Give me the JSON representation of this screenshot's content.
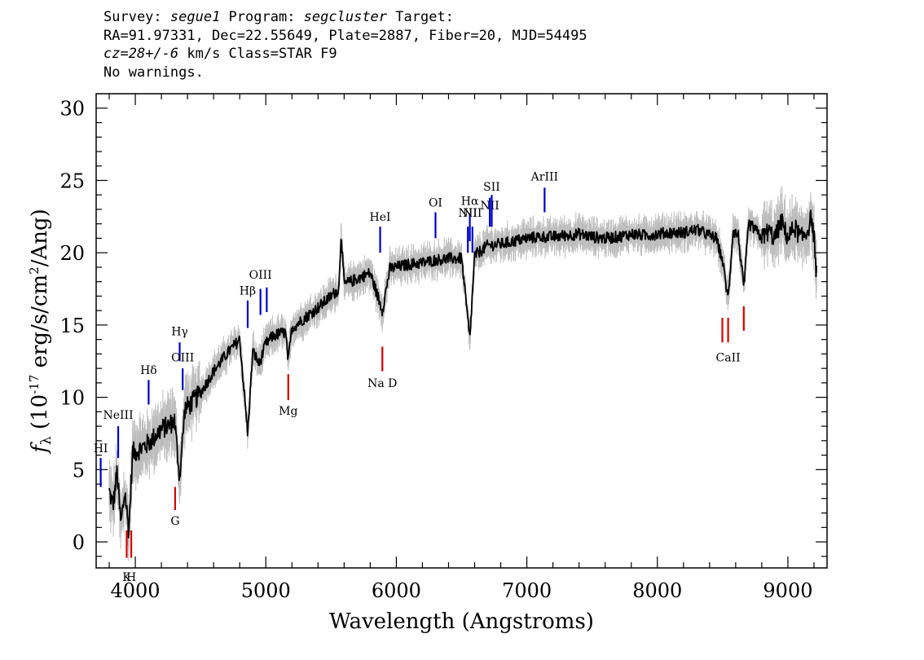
{
  "header": {
    "l1_a": "Survey: ",
    "l1_survey": "segue1",
    "l1_b": " Program: ",
    "l1_program": "segcluster",
    "l1_c": " Target:",
    "line2": "RA=91.97331, Dec=22.55649, Plate=2887, Fiber=20, MJD=54495",
    "l3_z": "cz=28+/-6",
    "l3_rest": " km/s Class=STAR F9",
    "line4": "No warnings."
  },
  "chart_data": {
    "type": "line",
    "title": "",
    "xlabel": "Wavelength (Angstroms)",
    "ylabel_main": "f",
    "ylabel_sub": "λ",
    "ylabel_rest_pre": " (10",
    "ylabel_exp": "-17",
    "ylabel_rest_mid": " erg/s/cm",
    "ylabel_exp2": "2",
    "ylabel_rest_end": "/Ang)",
    "xlim": [
      3700,
      9300
    ],
    "ylim": [
      -1.8,
      31
    ],
    "xticks": [
      4000,
      5000,
      6000,
      7000,
      8000,
      9000
    ],
    "yticks": [
      0,
      5,
      10,
      15,
      20,
      25,
      30
    ],
    "xminor_step": 200,
    "yminor_step": 1,
    "series": [
      {
        "color": "#000000",
        "x": [
          3800,
          3830,
          3860,
          3890,
          3920,
          3950,
          3980,
          4000,
          4050,
          4100,
          4150,
          4200,
          4250,
          4300,
          4340,
          4380,
          4420,
          4500,
          4600,
          4700,
          4800,
          4861,
          4900,
          4950,
          5000,
          5050,
          5100,
          5150,
          5172,
          5200,
          5300,
          5400,
          5500,
          5560,
          5577,
          5600,
          5700,
          5800,
          5893,
          5950,
          6000,
          6100,
          6200,
          6300,
          6400,
          6500,
          6563,
          6600,
          6700,
          6800,
          6900,
          7000,
          7100,
          7200,
          7300,
          7400,
          7500,
          7600,
          7700,
          7800,
          7900,
          8000,
          8100,
          8200,
          8300,
          8400,
          8450,
          8498,
          8542,
          8580,
          8620,
          8662,
          8700,
          8750,
          8800,
          8850,
          8900,
          8950,
          9000,
          9050,
          9100,
          9150,
          9180,
          9200,
          9220
        ],
        "values": [
          3.5,
          2.5,
          4.8,
          1.2,
          3.5,
          0.8,
          6.2,
          6.2,
          6.5,
          6.8,
          7.3,
          7.8,
          8.0,
          8.4,
          4.5,
          9.2,
          9.5,
          10.3,
          11.8,
          13.0,
          14.0,
          7.5,
          13.2,
          12.3,
          13.7,
          14.2,
          14.4,
          14.5,
          12.5,
          14.8,
          15.5,
          16.2,
          17.0,
          17.5,
          21.5,
          17.8,
          18.2,
          18.6,
          16.0,
          18.9,
          19.0,
          19.2,
          19.3,
          19.5,
          19.6,
          19.6,
          14.0,
          19.8,
          20.5,
          20.6,
          20.8,
          21.0,
          21.1,
          21.1,
          21.2,
          21.3,
          21.1,
          21.0,
          21.1,
          21.3,
          21.2,
          21.3,
          21.4,
          21.4,
          21.6,
          21.2,
          21.0,
          19.5,
          16.8,
          21.5,
          21.2,
          17.5,
          22.0,
          21.6,
          21.0,
          21.5,
          21.0,
          22.2,
          21.0,
          21.8,
          21.0,
          21.5,
          22.5,
          21.0,
          18.5
        ]
      }
    ],
    "error_band_color": "#bdbdbd",
    "line_ids": [
      {
        "label": "HI",
        "x": 3735,
        "color": "#0000c8",
        "ylo": 3.8,
        "yhi": 5.8,
        "ly": 6.2
      },
      {
        "label": "NeIII",
        "x": 3869,
        "color": "#0000c8",
        "ylo": 5.8,
        "yhi": 8.0,
        "ly": 8.5
      },
      {
        "label": "Hδ",
        "x": 4102,
        "color": "#0000c8",
        "ylo": 9.5,
        "yhi": 11.2,
        "ly": 11.6
      },
      {
        "label": "Hγ",
        "x": 4340,
        "color": "#0000c8",
        "ylo": 12.5,
        "yhi": 13.8,
        "ly": 14.3
      },
      {
        "label": "OIII",
        "x": 4363,
        "color": "#0000c8",
        "ylo": 10.5,
        "yhi": 12.0,
        "ly": 12.5
      },
      {
        "label": "Hβ",
        "x": 4861,
        "color": "#0000c8",
        "ylo": 14.8,
        "yhi": 16.7,
        "ly": 17.1
      },
      {
        "label": "OIII",
        "x": 4959,
        "color": "#0000c8",
        "ylo": 15.7,
        "yhi": 17.5,
        "ly": 18.2
      },
      {
        "label": "",
        "x": 5007,
        "color": "#0000c8",
        "ylo": 15.9,
        "yhi": 17.6,
        "ly": 18.2
      },
      {
        "label": "HeI",
        "x": 5876,
        "color": "#0000c8",
        "ylo": 20.0,
        "yhi": 21.8,
        "ly": 22.2
      },
      {
        "label": "OI",
        "x": 6300,
        "color": "#0000c8",
        "ylo": 21.0,
        "yhi": 22.8,
        "ly": 23.2
      },
      {
        "label": "NII",
        "x": 6548,
        "color": "#0000c8",
        "ylo": 20.0,
        "yhi": 21.8,
        "ly": 22.5
      },
      {
        "label": "Hα",
        "x": 6563,
        "color": "#0000c8",
        "ylo": 20.8,
        "yhi": 22.7,
        "ly": 23.3
      },
      {
        "label": "NII",
        "x": 6583,
        "color": "#0000c8",
        "ylo": 20.0,
        "yhi": 21.8,
        "ly": 22.5
      },
      {
        "label": "NII",
        "x": 6716,
        "color": "#0000c8",
        "ylo": 21.8,
        "yhi": 23.8,
        "ly": 23.0
      },
      {
        "label": "SII",
        "x": 6731,
        "color": "#0000c8",
        "ylo": 21.8,
        "yhi": 24.0,
        "ly": 24.3
      },
      {
        "label": "ArIII",
        "x": 7136,
        "color": "#0000c8",
        "ylo": 22.8,
        "yhi": 24.5,
        "ly": 25.0
      },
      {
        "label": "K",
        "x": 3934,
        "color": "#d40000",
        "ylo": -1.1,
        "yhi": 0.8,
        "ly": -2.7
      },
      {
        "label": "H",
        "x": 3969,
        "color": "#d40000",
        "ylo": -1.1,
        "yhi": 0.8,
        "ly": -2.7
      },
      {
        "label": "G",
        "x": 4305,
        "color": "#d40000",
        "ylo": 2.2,
        "yhi": 3.8,
        "ly": 1.2
      },
      {
        "label": "Mg",
        "x": 5172,
        "color": "#d40000",
        "ylo": 9.8,
        "yhi": 11.6,
        "ly": 8.8
      },
      {
        "label": "Na D",
        "x": 5893,
        "color": "#d40000",
        "ylo": 11.8,
        "yhi": 13.5,
        "ly": 10.7
      },
      {
        "label": "",
        "x": 8498,
        "color": "#d40000",
        "ylo": 13.8,
        "yhi": 15.5,
        "ly": 0
      },
      {
        "label": "CaII",
        "x": 8542,
        "color": "#d40000",
        "ylo": 13.8,
        "yhi": 15.5,
        "ly": 12.5
      },
      {
        "label": "",
        "x": 8662,
        "color": "#d40000",
        "ylo": 14.6,
        "yhi": 16.3,
        "ly": 0
      }
    ]
  }
}
